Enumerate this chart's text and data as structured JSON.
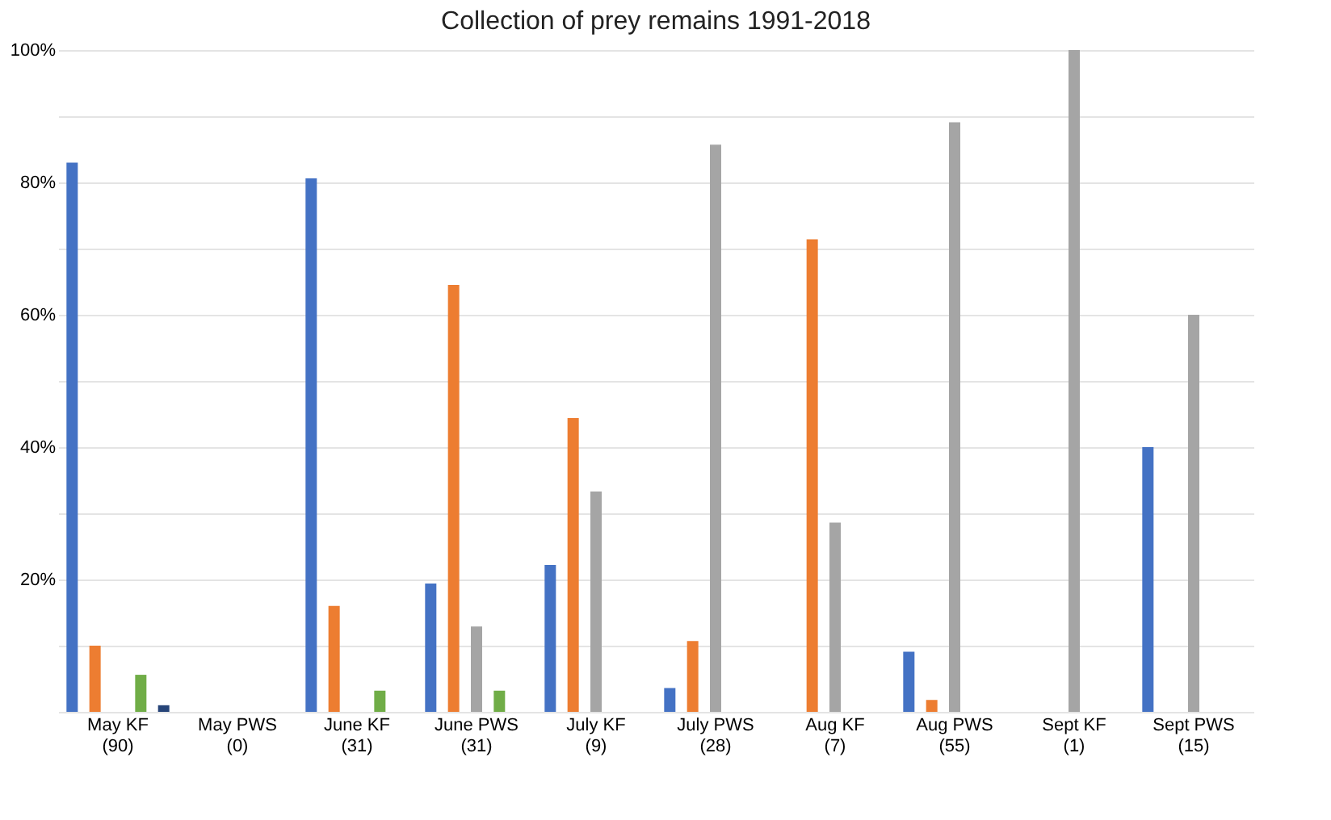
{
  "chart_data": {
    "type": "bar",
    "title": "Collection of prey remains 1991-2018",
    "categories": [
      "May KF\n(90)",
      "May PWS\n(0)",
      "June KF\n(31)",
      "June PWS\n(31)",
      "July KF\n(9)",
      "July PWS\n(28)",
      "Aug KF\n(7)",
      "Aug PWS\n(55)",
      "Sept KF\n(1)",
      "Sept PWS\n(15)"
    ],
    "series": [
      {
        "color": "#4472c4",
        "values": [
          83,
          0,
          80.6,
          19.4,
          22.2,
          3.6,
          0,
          9.1,
          0,
          40
        ]
      },
      {
        "color": "#ed7d31",
        "values": [
          10,
          0,
          16,
          64.5,
          44.4,
          10.7,
          71.4,
          1.8,
          0,
          0
        ]
      },
      {
        "color": "#a5a5a5",
        "values": [
          0,
          0,
          0,
          12.9,
          33.3,
          85.7,
          28.6,
          89.1,
          100,
          60
        ]
      },
      {
        "color": "#70ad47",
        "values": [
          5.6,
          0,
          3.2,
          3.2,
          0,
          0,
          0,
          0,
          0,
          0
        ]
      },
      {
        "color": "#264478",
        "values": [
          1,
          0,
          0,
          0,
          0,
          0,
          0,
          0,
          0,
          0
        ]
      }
    ],
    "ylim": [
      0,
      100
    ],
    "yticks": [
      {
        "value": 0,
        "label": null
      },
      {
        "value": 10,
        "label": null
      },
      {
        "value": 20,
        "label": "20%"
      },
      {
        "value": 30,
        "label": null
      },
      {
        "value": 40,
        "label": "40%"
      },
      {
        "value": 50,
        "label": null
      },
      {
        "value": 60,
        "label": "60%"
      },
      {
        "value": 70,
        "label": null
      },
      {
        "value": 80,
        "label": "80%"
      },
      {
        "value": 90,
        "label": null
      },
      {
        "value": 100,
        "label": "100%"
      }
    ],
    "grid": true,
    "legend": false
  }
}
